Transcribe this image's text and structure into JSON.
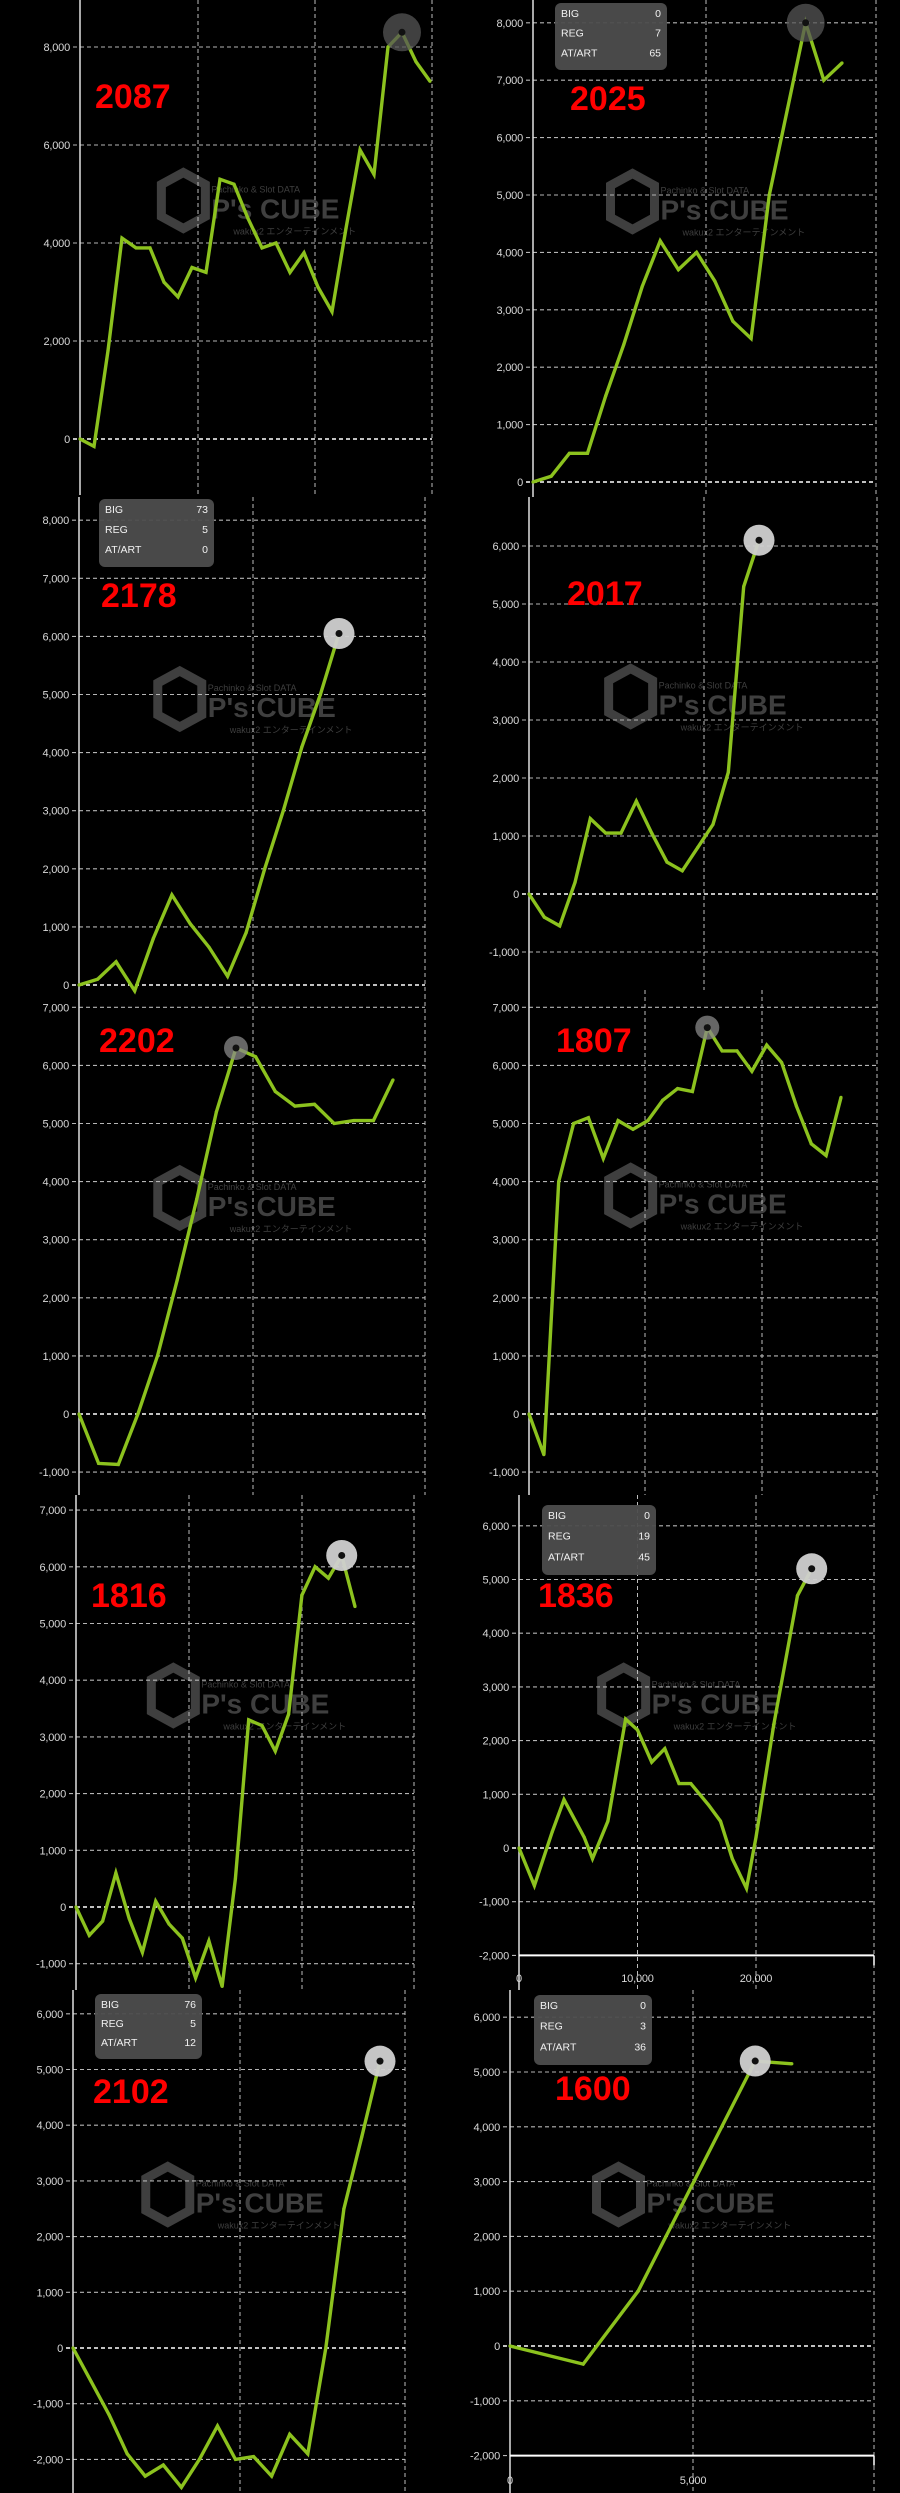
{
  "series_color": "#8cc21e",
  "label_color": "#ff0000",
  "watermark": {
    "brand": "P's CUBE",
    "top": "Pachinko & Slot DATA",
    "bottom": "wakux2 エンターテインメント"
  },
  "tooltip_keys": [
    "BIG",
    "REG",
    "AT/ART"
  ],
  "chart_data": [
    {
      "type": "line",
      "label": "2087",
      "yticks": [
        "8,000",
        "6,000",
        "4,000",
        "2,000",
        "0"
      ],
      "ylim": [
        -1200,
        8800
      ],
      "marker": "peak",
      "marker_color": "#555555",
      "values": [
        0,
        -150,
        1800,
        4100,
        3900,
        3900,
        3200,
        2900,
        3500,
        3400,
        5300,
        5200,
        4500,
        3900,
        4000,
        3400,
        3800,
        3100,
        2600,
        4300,
        5900,
        5400,
        8000,
        8300,
        7700,
        7300
      ]
    },
    {
      "type": "line",
      "label": "2025",
      "yticks": [
        "8,000",
        "7,000",
        "6,000",
        "5,000",
        "4,000",
        "3,000",
        "2,000",
        "1,000",
        "0"
      ],
      "ylim": [
        -300,
        8300
      ],
      "marker": "peak",
      "marker_color": "#555555",
      "tooltip": {
        "BIG": "0",
        "REG": "7",
        "AT/ART": "65"
      },
      "values": [
        0,
        100,
        500,
        500,
        1500,
        2400,
        3400,
        4200,
        3700,
        4000,
        3500,
        2800,
        2500,
        5000,
        6500,
        8000,
        7000,
        7300
      ]
    },
    {
      "type": "line",
      "label": "2178",
      "yticks": [
        "8,000",
        "7,000",
        "6,000",
        "5,000",
        "4,000",
        "3,000",
        "2,000",
        "1,000",
        "0"
      ],
      "ylim": [
        -200,
        8300
      ],
      "marker": "last",
      "marker_color": "#d0d0d0",
      "tooltip": {
        "BIG": "73",
        "REG": "5",
        "AT/ART": "0"
      },
      "values": [
        0,
        100,
        400,
        -100,
        800,
        1550,
        1050,
        650,
        150,
        900,
        2000,
        3000,
        4100,
        5000,
        6050
      ]
    },
    {
      "type": "line",
      "label": "2017",
      "yticks": [
        "6,000",
        "5,000",
        "4,000",
        "3,000",
        "2,000",
        "1,000",
        "0",
        "-1,000"
      ],
      "ylim": [
        -1600,
        6900
      ],
      "marker": "last",
      "marker_color": "#d0d0d0",
      "values": [
        0,
        -400,
        -550,
        200,
        1300,
        1050,
        1050,
        1600,
        1050,
        550,
        400,
        800,
        1200,
        2100,
        5300,
        6100
      ]
    },
    {
      "type": "line",
      "label": "2202",
      "yticks": [
        "7,000",
        "6,000",
        "5,000",
        "4,000",
        "3,000",
        "2,000",
        "1,000",
        "0",
        "-1,000"
      ],
      "ylim": [
        -1400,
        7300
      ],
      "marker": "peak",
      "marker_color": "#888888",
      "values": [
        0,
        -850,
        -870,
        0,
        1000,
        2300,
        3700,
        5200,
        6300,
        6150,
        5550,
        5300,
        5330,
        5000,
        5050,
        5050,
        5750
      ]
    },
    {
      "type": "line",
      "label": "1807",
      "yticks": [
        "7,000",
        "6,000",
        "5,000",
        "4,000",
        "3,000",
        "2,000",
        "1,000",
        "0",
        "-1,000"
      ],
      "ylim": [
        -1400,
        7300
      ],
      "marker": "peak",
      "marker_color": "#888888",
      "values": [
        0,
        -700,
        4000,
        5000,
        5100,
        4400,
        5050,
        4900,
        5050,
        5400,
        5600,
        5550,
        6650,
        6250,
        6250,
        5900,
        6350,
        6050,
        5300,
        4650,
        4450,
        5450
      ]
    },
    {
      "type": "line",
      "label": "1816",
      "yticks": [
        "7,000",
        "6,000",
        "5,000",
        "4,000",
        "3,000",
        "2,000",
        "1,000",
        "0",
        "-1,000"
      ],
      "ylim": [
        -1450,
        7300
      ],
      "marker": "peak",
      "marker_color": "#d0d0d0",
      "values": [
        0,
        -500,
        -250,
        600,
        -200,
        -800,
        100,
        -300,
        -550,
        -1250,
        -600,
        -1400,
        500,
        3300,
        3200,
        2750,
        3400,
        5500,
        6000,
        5800,
        6200,
        5300
      ]
    },
    {
      "type": "line",
      "label": "1836",
      "yticks": [
        "6,000",
        "5,000",
        "4,000",
        "3,000",
        "2,000",
        "1,000",
        "0",
        "-1,000",
        "-2,000"
      ],
      "ylim": [
        -2000,
        6600
      ],
      "marker": "last",
      "marker_color": "#d0d0d0",
      "xticks": [
        "0",
        "10,000",
        "20,000"
      ],
      "xlim": [
        0,
        30000
      ],
      "tooltip": {
        "BIG": "0",
        "REG": "19",
        "AT/ART": "45"
      },
      "points": [
        [
          0,
          0
        ],
        [
          1300,
          -700
        ],
        [
          2800,
          300
        ],
        [
          3800,
          900
        ],
        [
          5500,
          200
        ],
        [
          6200,
          -200
        ],
        [
          7500,
          500
        ],
        [
          9000,
          2400
        ],
        [
          10000,
          2200
        ],
        [
          11200,
          1600
        ],
        [
          12300,
          1850
        ],
        [
          13500,
          1200
        ],
        [
          14500,
          1200
        ],
        [
          16000,
          800
        ],
        [
          17000,
          500
        ],
        [
          18000,
          -200
        ],
        [
          19200,
          -750
        ],
        [
          20000,
          200
        ],
        [
          21500,
          2300
        ],
        [
          23500,
          4700
        ],
        [
          24700,
          5200
        ]
      ]
    },
    {
      "type": "line",
      "label": "2102",
      "yticks": [
        "6,000",
        "5,000",
        "4,000",
        "3,000",
        "2,000",
        "1,000",
        "0",
        "-1,000",
        "-2,000"
      ],
      "ylim": [
        -2600,
        6300
      ],
      "marker": "last",
      "marker_color": "#d0d0d0",
      "tooltip": {
        "BIG": "76",
        "REG": "5",
        "AT/ART": "12"
      },
      "values": [
        0,
        -600,
        -1200,
        -1900,
        -2300,
        -2100,
        -2500,
        -2000,
        -1400,
        -2000,
        -1950,
        -2300,
        -1550,
        -1900,
        0,
        2500,
        3800,
        5150
      ]
    },
    {
      "type": "line",
      "label": "1600",
      "yticks": [
        "6,000",
        "5,000",
        "4,000",
        "3,000",
        "2,000",
        "1,000",
        "0",
        "-1,000",
        "-2,000"
      ],
      "ylim": [
        -2000,
        6600
      ],
      "marker": "index:3",
      "marker_color": "#d0d0d0",
      "xticks": [
        "0",
        "5,000"
      ],
      "xlim": [
        0,
        10000
      ],
      "tooltip": {
        "BIG": "0",
        "REG": "3",
        "AT/ART": "36"
      },
      "points": [
        [
          0,
          0
        ],
        [
          2000,
          -330
        ],
        [
          3500,
          1000
        ],
        [
          6700,
          5200
        ],
        [
          7700,
          5150
        ]
      ]
    }
  ]
}
